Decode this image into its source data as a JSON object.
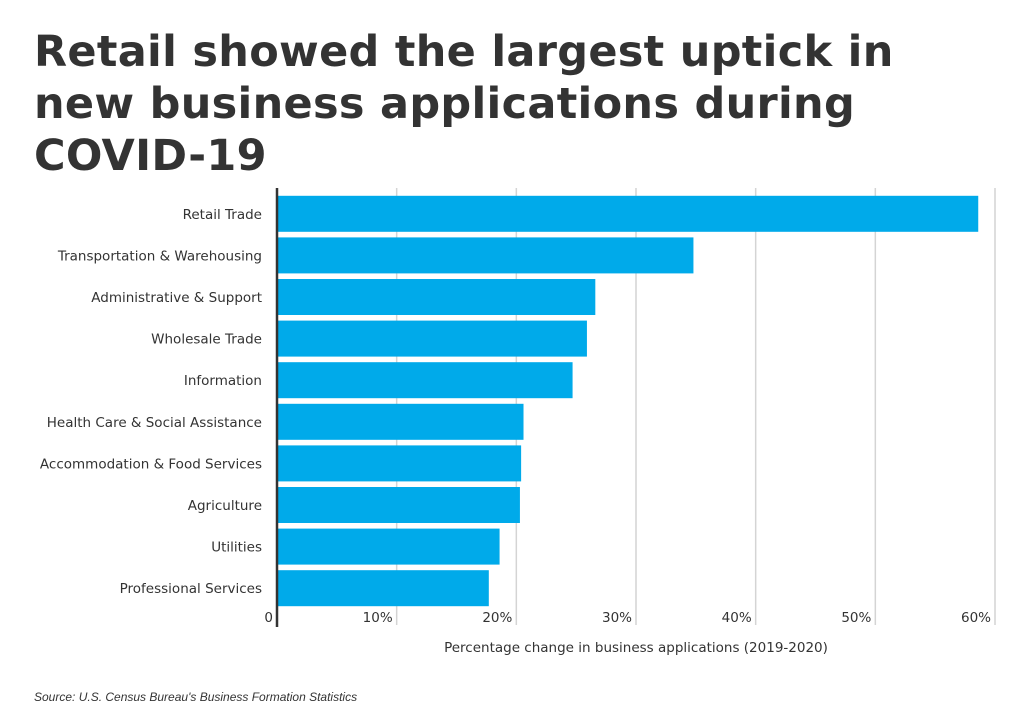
{
  "chart_data": {
    "type": "bar",
    "orientation": "horizontal",
    "title": "Retail showed the largest uptick in new business applications during COVID-19",
    "categories": [
      "Retail Trade",
      "Transportation & Warehousing",
      "Administrative & Support",
      "Wholesale Trade",
      "Information",
      "Health Care & Social Assistance",
      "Accommodation & Food Services",
      "Agriculture",
      "Utilities",
      "Professional Services"
    ],
    "values": [
      58.6,
      34.8,
      26.6,
      25.9,
      24.7,
      20.6,
      20.4,
      20.3,
      18.6,
      17.7
    ],
    "xlabel": "Percentage change in business applications (2019-2020)",
    "ylabel": "",
    "xlim": [
      0,
      60
    ],
    "xticks": [
      0,
      10,
      20,
      30,
      40,
      50,
      60
    ],
    "xtick_labels": [
      "0",
      "10%",
      "20%",
      "30%",
      "40%",
      "50%",
      "60%"
    ],
    "grid": "vertical",
    "bar_color": "#00AAEA",
    "source": "Source:  U.S. Census Bureau's Business Formation Statistics"
  }
}
